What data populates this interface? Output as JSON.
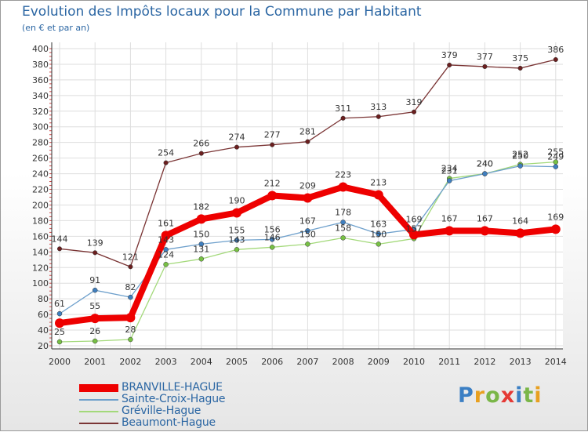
{
  "header": {
    "title": "Evolution des Impôts locaux pour la Commune par Habitant",
    "subtitle": "(en € et par an)"
  },
  "logo": {
    "text": "Proxiti",
    "colors": [
      "#3b7fc4",
      "#e8a020",
      "#7ab648",
      "#e53935",
      "#3b7fc4",
      "#7ab648",
      "#e8a020"
    ]
  },
  "chart_data": {
    "type": "line",
    "x": [
      "2000",
      "2001",
      "2002",
      "2003",
      "2004",
      "2005",
      "2006",
      "2007",
      "2008",
      "2009",
      "2010",
      "2011",
      "2012",
      "2013",
      "2014"
    ],
    "ylim": [
      20,
      400
    ],
    "yticks": [
      20,
      40,
      60,
      80,
      100,
      120,
      140,
      160,
      180,
      200,
      220,
      240,
      260,
      280,
      300,
      320,
      340,
      360,
      380,
      400
    ],
    "grid": true,
    "legend_position": "bottom-left",
    "series": [
      {
        "name": "BRANVILLE-HAGUE",
        "color": "#ee0000",
        "point_color": "#ee0000",
        "values": [
          49,
          55,
          56,
          161,
          182,
          190,
          212,
          209,
          223,
          213,
          162,
          167,
          167,
          164,
          169
        ],
        "labels": [
          "",
          "55",
          "",
          "161",
          "182",
          "190",
          "212",
          "209",
          "223",
          "213",
          "",
          "167",
          "167",
          "164",
          "169"
        ]
      },
      {
        "name": "Sainte-Croix-Hague",
        "color": "#6ea0cc",
        "point_color": "#3f7fbf",
        "values": [
          61,
          91,
          82,
          143,
          150,
          155,
          156,
          167,
          178,
          163,
          169,
          231,
          240,
          250,
          249
        ],
        "labels": [
          "61",
          "91",
          "82",
          "143",
          "150",
          "155",
          "156",
          "167",
          "178",
          "163",
          "169",
          "231",
          "240",
          "250",
          "249"
        ]
      },
      {
        "name": "Gréville-Hague",
        "color": "#a3d97a",
        "point_color": "#77c044",
        "values": [
          25,
          26,
          28,
          124,
          131,
          143,
          146,
          150,
          158,
          150,
          157,
          234,
          240,
          252,
          255
        ],
        "labels": [
          "25",
          "26",
          "28",
          "124",
          "131",
          "143",
          "146",
          "150",
          "158",
          "150",
          "157",
          "234",
          "240",
          "252",
          "255"
        ]
      },
      {
        "name": "Beaumont-Hague",
        "color": "#7a3434",
        "point_color": "#6b1f1f",
        "values": [
          144,
          139,
          121,
          254,
          266,
          274,
          277,
          281,
          311,
          313,
          319,
          379,
          377,
          375,
          386
        ],
        "labels": [
          "144",
          "139",
          "121",
          "254",
          "266",
          "274",
          "277",
          "281",
          "311",
          "313",
          "319",
          "379",
          "377",
          "375",
          "386"
        ]
      }
    ]
  }
}
